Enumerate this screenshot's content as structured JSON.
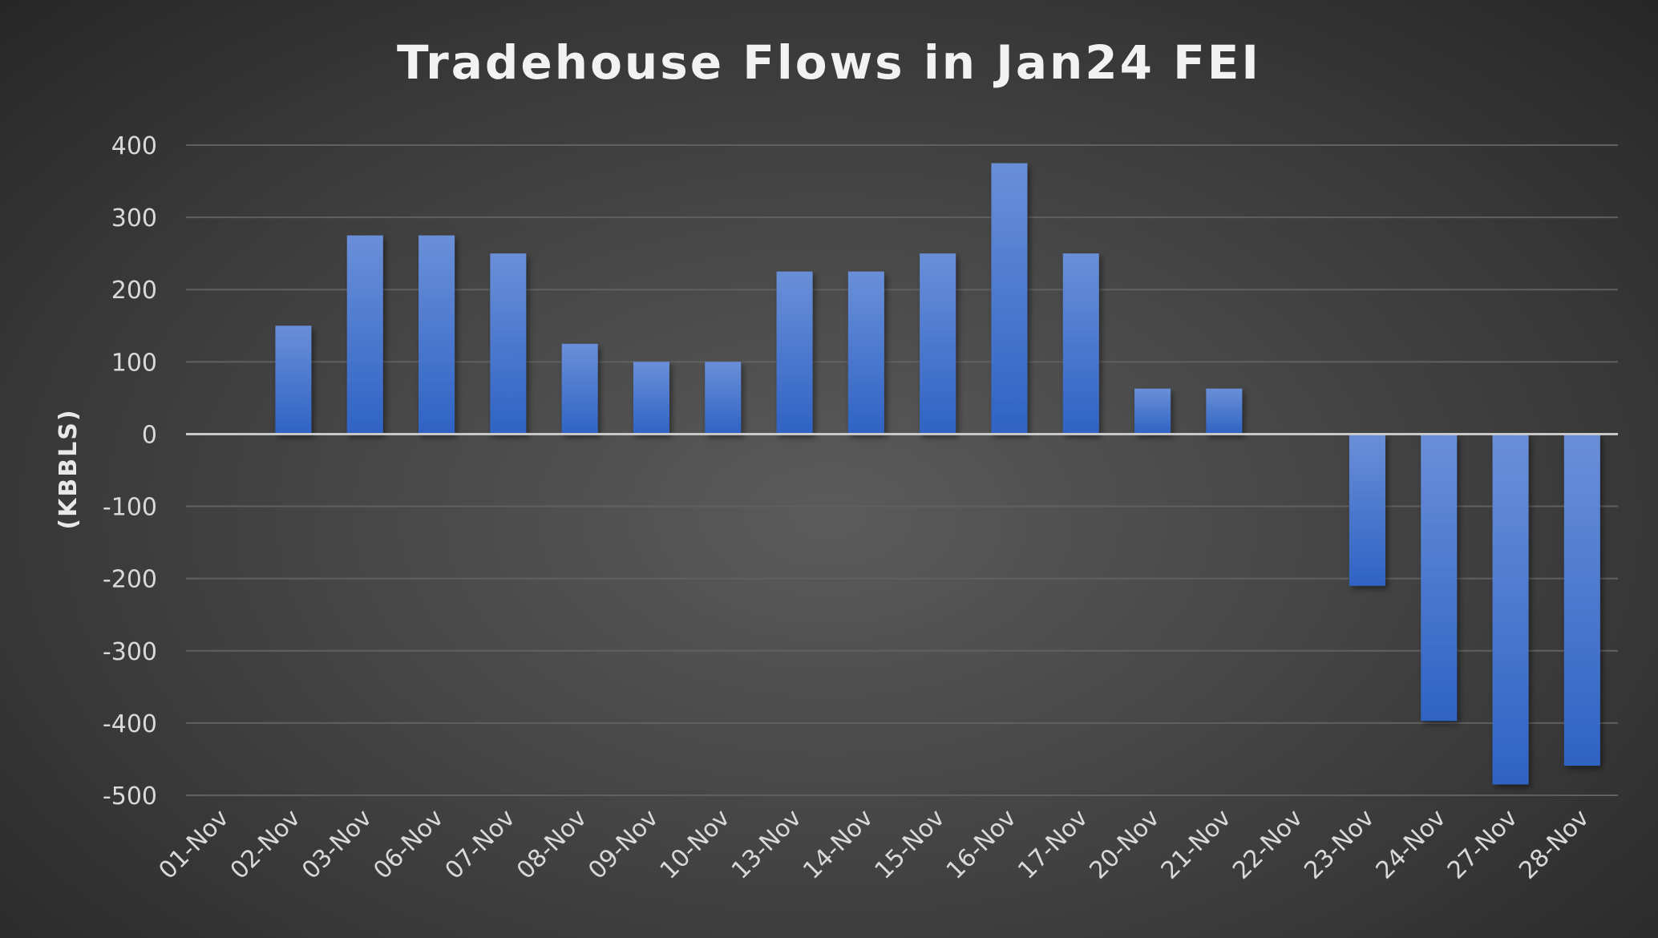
{
  "chart_data": {
    "type": "bar",
    "title": "Tradehouse Flows in Jan24 FEI",
    "xlabel": "",
    "ylabel": "(KBBLS)",
    "ylim": [
      -500,
      400
    ],
    "yticks": [
      400,
      300,
      200,
      100,
      0,
      -100,
      -200,
      -300,
      -400,
      -500
    ],
    "grid": true,
    "legend": "none",
    "categories": [
      "01-Nov",
      "02-Nov",
      "03-Nov",
      "06-Nov",
      "07-Nov",
      "08-Nov",
      "09-Nov",
      "10-Nov",
      "13-Nov",
      "14-Nov",
      "15-Nov",
      "16-Nov",
      "17-Nov",
      "20-Nov",
      "21-Nov",
      "22-Nov",
      "23-Nov",
      "24-Nov",
      "27-Nov",
      "28-Nov"
    ],
    "values": [
      0,
      150,
      275,
      275,
      250,
      125,
      100,
      100,
      225,
      225,
      250,
      375,
      250,
      63,
      63,
      0,
      -210,
      -397,
      -485,
      -459
    ],
    "colors": {
      "bar_top": "#6a8fd8",
      "bar_bottom": "#2f63c4",
      "gridline": "#606060",
      "zero_line": "#c8c8c8"
    }
  }
}
